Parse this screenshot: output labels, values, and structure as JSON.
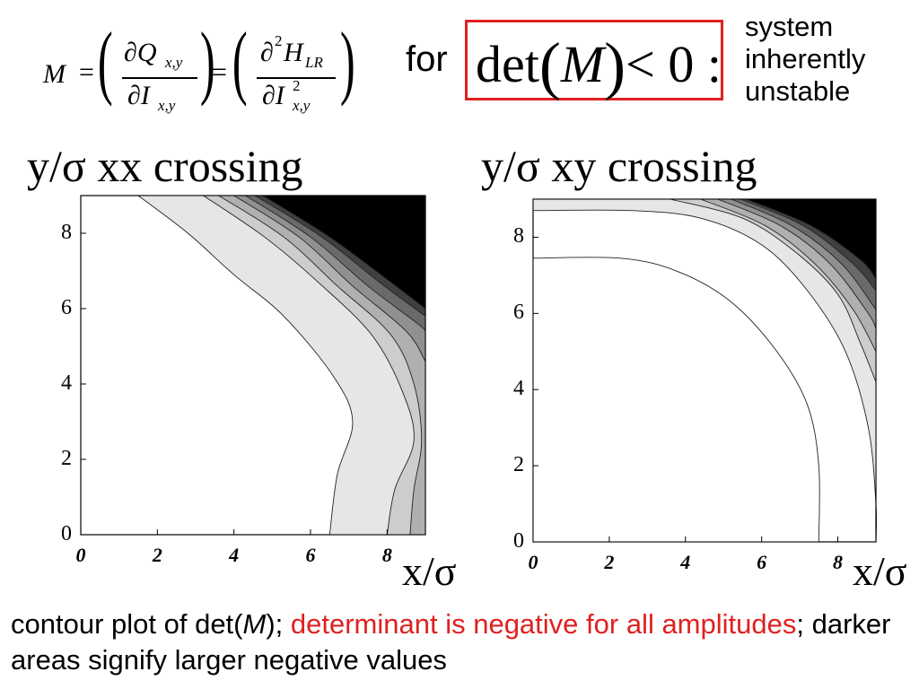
{
  "formula": {
    "lhs": "M",
    "eq1": "=",
    "eq2": "=",
    "num1": "∂Q",
    "num1_sub": "x,y",
    "den1": "∂I",
    "den1_sub": "x,y",
    "num2": "∂",
    "num2_sup": "2",
    "num2_H": "H",
    "num2_sub": "LR",
    "den2": "∂I",
    "den2_sup": "2",
    "den2_sub": "x,y"
  },
  "condition": {
    "for_label": "for",
    "det": "det",
    "arg": "M",
    "relation": "< 0 :"
  },
  "conclusion": [
    "system",
    "inherently",
    "unstable"
  ],
  "colors": {
    "accent_red": "#e02020",
    "levels": [
      "#ffffff",
      "#e6e6e6",
      "#cdcdcd",
      "#b0b0b0",
      "#909090",
      "#6a6a6a",
      "#404040",
      "#000000"
    ]
  },
  "chart_data": [
    {
      "type": "heatmap",
      "subtype": "contour",
      "title": "y/σ  xx crossing",
      "xlabel": "x/σ",
      "ylabel": "",
      "xlim": [
        0,
        9
      ],
      "ylim": [
        0,
        9
      ],
      "xticks": [
        "0",
        "2",
        "4",
        "6",
        "8"
      ],
      "yticks": [
        "0",
        "2",
        "4",
        "6",
        "8"
      ],
      "grid": false,
      "contour_boundaries": [
        {
          "level": 1,
          "points": [
            [
              1.5,
              9
            ],
            [
              2.8,
              8.0
            ],
            [
              4.0,
              6.9
            ],
            [
              5.3,
              5.8
            ],
            [
              6.6,
              4.2
            ],
            [
              7.1,
              3.0
            ],
            [
              6.7,
              1.6
            ],
            [
              6.5,
              0
            ]
          ]
        },
        {
          "level": 2,
          "points": [
            [
              3.2,
              9
            ],
            [
              4.8,
              7.9
            ],
            [
              6.2,
              6.7
            ],
            [
              7.6,
              5.3
            ],
            [
              8.4,
              3.8
            ],
            [
              8.7,
              2.5
            ],
            [
              8.2,
              1.2
            ],
            [
              8.0,
              0
            ]
          ]
        },
        {
          "level": 3,
          "points": [
            [
              3.6,
              9
            ],
            [
              5.3,
              7.9
            ],
            [
              6.7,
              6.6
            ],
            [
              8.1,
              5.3
            ],
            [
              8.7,
              4.0
            ],
            [
              8.9,
              2.5
            ],
            [
              8.7,
              1.2
            ],
            [
              8.6,
              0
            ]
          ]
        },
        {
          "level": 4,
          "points": [
            [
              4.0,
              9
            ],
            [
              5.7,
              7.9
            ],
            [
              7.1,
              6.6
            ],
            [
              8.5,
              5.4
            ],
            [
              9.0,
              4.6
            ]
          ]
        },
        {
          "level": 5,
          "points": [
            [
              4.3,
              9
            ],
            [
              6.0,
              7.9
            ],
            [
              7.5,
              6.6
            ],
            [
              8.8,
              5.6
            ],
            [
              9.0,
              5.4
            ]
          ]
        },
        {
          "level": 6,
          "points": [
            [
              4.55,
              9
            ],
            [
              6.3,
              7.9
            ],
            [
              7.8,
              6.7
            ],
            [
              9.0,
              5.8
            ]
          ]
        },
        {
          "level": 7,
          "points": [
            [
              4.75,
              9
            ],
            [
              6.5,
              7.9
            ],
            [
              8.1,
              6.7
            ],
            [
              9.0,
              6.0
            ]
          ]
        }
      ]
    },
    {
      "type": "heatmap",
      "subtype": "contour",
      "title": "y/σ  xy crossing",
      "xlabel": "x/σ",
      "ylabel": "",
      "xlim": [
        0,
        9
      ],
      "ylim": [
        0,
        9
      ],
      "xticks": [
        "0",
        "2",
        "4",
        "6",
        "8"
      ],
      "yticks": [
        "0",
        "2",
        "4",
        "6",
        "8"
      ],
      "grid": false,
      "contour_boundaries": [
        {
          "level": 1,
          "points": [
            [
              0,
              8.7
            ],
            [
              2.6,
              8.7
            ],
            [
              4.4,
              8.5
            ],
            [
              6.0,
              7.8
            ],
            [
              7.2,
              6.6
            ],
            [
              8.2,
              5.0
            ],
            [
              8.8,
              3.0
            ],
            [
              9.0,
              1.0
            ],
            [
              9.0,
              0
            ]
          ]
        },
        {
          "level": 1,
          "closes_white": true,
          "points": [
            [
              0,
              7.45
            ],
            [
              2.3,
              7.45
            ],
            [
              3.8,
              7.1
            ],
            [
              5.2,
              6.3
            ],
            [
              6.4,
              5.0
            ],
            [
              7.2,
              3.6
            ],
            [
              7.5,
              2.0
            ],
            [
              7.5,
              0
            ]
          ]
        },
        {
          "level": 2,
          "points": [
            [
              3.6,
              9
            ],
            [
              5.5,
              8.5
            ],
            [
              6.9,
              7.6
            ],
            [
              8.0,
              6.5
            ],
            [
              8.6,
              5.2
            ],
            [
              9.0,
              4.2
            ]
          ]
        },
        {
          "level": 3,
          "points": [
            [
              4.4,
              9
            ],
            [
              6.1,
              8.3
            ],
            [
              7.4,
              7.3
            ],
            [
              8.4,
              6.1
            ],
            [
              9.0,
              5.0
            ]
          ]
        },
        {
          "level": 4,
          "points": [
            [
              4.85,
              9
            ],
            [
              6.5,
              8.3
            ],
            [
              7.8,
              7.3
            ],
            [
              8.8,
              6.0
            ],
            [
              9.0,
              5.6
            ]
          ]
        },
        {
          "level": 5,
          "points": [
            [
              5.2,
              9
            ],
            [
              6.8,
              8.3
            ],
            [
              8.1,
              7.3
            ],
            [
              9.0,
              6.1
            ]
          ]
        },
        {
          "level": 6,
          "points": [
            [
              5.45,
              9
            ],
            [
              7.1,
              8.3
            ],
            [
              8.4,
              7.3
            ],
            [
              9.0,
              6.6
            ]
          ]
        },
        {
          "level": 7,
          "points": [
            [
              5.6,
              9
            ],
            [
              7.3,
              8.3
            ],
            [
              8.6,
              7.4
            ],
            [
              9.0,
              6.9
            ]
          ]
        }
      ]
    }
  ],
  "caption": {
    "part1": "contour plot of det(",
    "part1_italic": "M",
    "part2": "); ",
    "part3_red": "determinant is negative for all amplitudes",
    "part4": "; darker areas signify larger negative values"
  }
}
